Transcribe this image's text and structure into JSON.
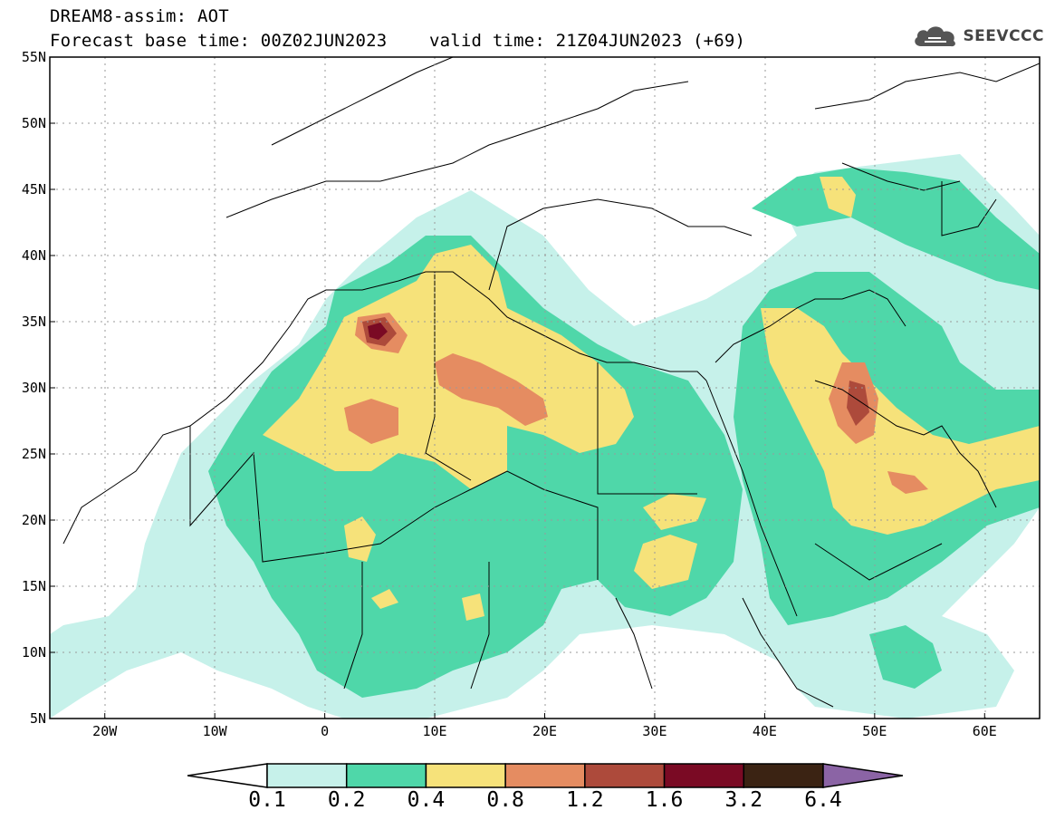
{
  "header": {
    "line1": "DREAM8-assim: AOT",
    "line2": "Forecast base time: 00Z02JUN2023    valid time: 21Z04JUN2023 (+69)",
    "logo_text": "SEEVCCC",
    "logo_icon": "cloud-icon"
  },
  "map": {
    "variable": "AOT",
    "extent": {
      "lon_min": -25,
      "lon_max": 65,
      "lat_min": 5,
      "lat_max": 55
    },
    "lat_labels": [
      "55N",
      "50N",
      "45N",
      "40N",
      "35N",
      "30N",
      "25N",
      "20N",
      "15N",
      "10N",
      "5N"
    ],
    "lat_values": [
      55,
      50,
      45,
      40,
      35,
      30,
      25,
      20,
      15,
      10,
      5
    ],
    "lon_labels": [
      "20W",
      "10W",
      "0",
      "10E",
      "20E",
      "30E",
      "40E",
      "50E",
      "60E"
    ],
    "lon_values": [
      -20,
      -10,
      0,
      10,
      20,
      30,
      40,
      50,
      60
    ],
    "max_feature": "Dark maroon peak near 5E 34.5N (1.6-3.2 class)"
  },
  "legend": {
    "colors": [
      "#ffffff",
      "#c6f1ea",
      "#4fd7a9",
      "#f6e27a",
      "#e58c61",
      "#ad4a3b",
      "#7a0a24",
      "#3b2313",
      "#8b64a5"
    ],
    "labels": [
      "0.1",
      "0.2",
      "0.4",
      "0.8",
      "1.2",
      "1.6",
      "3.2",
      "6.4"
    ]
  }
}
